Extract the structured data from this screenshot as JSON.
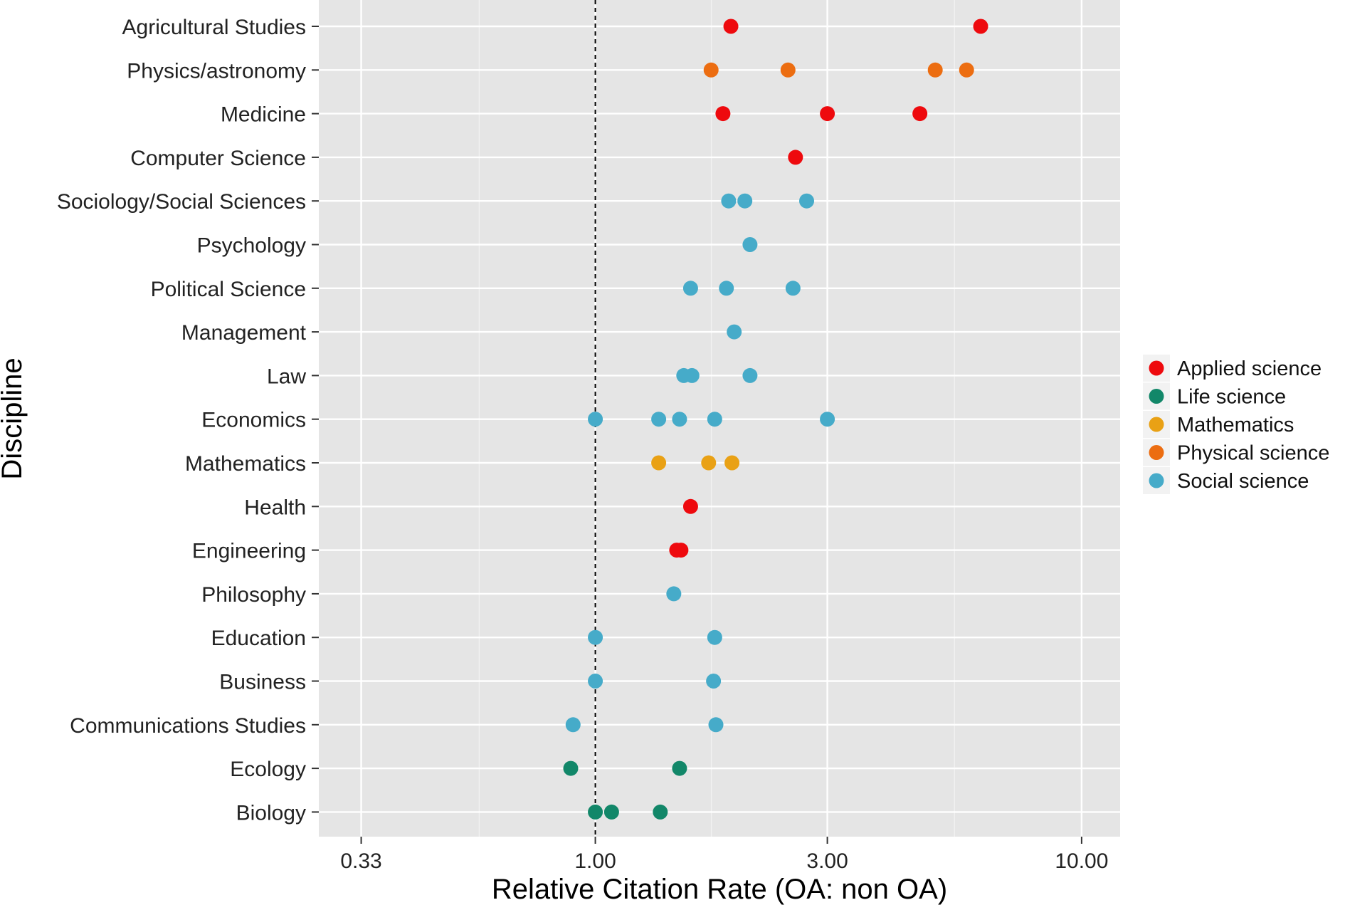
{
  "chart_data": {
    "type": "scatter",
    "title": "",
    "xlabel": "Relative Citation Rate (OA: non OA)",
    "ylabel": "Discipline",
    "x_scale": "log",
    "xlim": [
      0.27,
      12.0
    ],
    "x_ticks": [
      0.33,
      1.0,
      3.0,
      10.0
    ],
    "x_tick_labels": [
      "0.33",
      "1.00",
      "3.00",
      "10.00"
    ],
    "x_minor_ticks": [
      0.577,
      1.732,
      5.477
    ],
    "reference_line": {
      "x": 1.0,
      "style": "dashed"
    },
    "grid": true,
    "legend_position": "right",
    "categories": [
      "Agricultural Studies",
      "Physics/astronomy",
      "Medicine",
      "Computer Science",
      "Sociology/Social Sciences",
      "Psychology",
      "Political Science",
      "Management",
      "Law",
      "Economics",
      "Mathematics",
      "Health",
      "Engineering",
      "Philosophy",
      "Education",
      "Business",
      "Communications Studies",
      "Ecology",
      "Biology"
    ],
    "series": [
      {
        "name": "Applied science",
        "color": "#ee0a0e",
        "points": [
          {
            "category": "Agricultural Studies",
            "x": 1.9
          },
          {
            "category": "Agricultural Studies",
            "x": 6.2
          },
          {
            "category": "Medicine",
            "x": 1.83
          },
          {
            "category": "Medicine",
            "x": 3.0
          },
          {
            "category": "Medicine",
            "x": 4.65
          },
          {
            "category": "Computer Science",
            "x": 2.58
          },
          {
            "category": "Health",
            "x": 1.57
          },
          {
            "category": "Engineering",
            "x": 1.47
          },
          {
            "category": "Engineering",
            "x": 1.5
          }
        ]
      },
      {
        "name": "Life science",
        "color": "#128769",
        "points": [
          {
            "category": "Ecology",
            "x": 0.89
          },
          {
            "category": "Ecology",
            "x": 1.49
          },
          {
            "category": "Biology",
            "x": 1.0
          },
          {
            "category": "Biology",
            "x": 1.08
          },
          {
            "category": "Biology",
            "x": 1.36
          }
        ]
      },
      {
        "name": "Mathematics",
        "color": "#e9a115",
        "points": [
          {
            "category": "Mathematics",
            "x": 1.35
          },
          {
            "category": "Mathematics",
            "x": 1.71
          },
          {
            "category": "Mathematics",
            "x": 1.91
          }
        ]
      },
      {
        "name": "Physical science",
        "color": "#ec6d11",
        "points": [
          {
            "category": "Physics/astronomy",
            "x": 1.73
          },
          {
            "category": "Physics/astronomy",
            "x": 2.49
          },
          {
            "category": "Physics/astronomy",
            "x": 5.0
          },
          {
            "category": "Physics/astronomy",
            "x": 5.8
          }
        ]
      },
      {
        "name": "Social science",
        "color": "#46abc9",
        "points": [
          {
            "category": "Sociology/Social Sciences",
            "x": 1.88
          },
          {
            "category": "Sociology/Social Sciences",
            "x": 2.03
          },
          {
            "category": "Sociology/Social Sciences",
            "x": 2.72
          },
          {
            "category": "Psychology",
            "x": 2.08
          },
          {
            "category": "Political Science",
            "x": 1.57
          },
          {
            "category": "Political Science",
            "x": 1.86
          },
          {
            "category": "Political Science",
            "x": 2.55
          },
          {
            "category": "Management",
            "x": 1.93
          },
          {
            "category": "Law",
            "x": 1.52
          },
          {
            "category": "Law",
            "x": 1.58
          },
          {
            "category": "Law",
            "x": 2.08
          },
          {
            "category": "Economics",
            "x": 1.0
          },
          {
            "category": "Economics",
            "x": 1.35
          },
          {
            "category": "Economics",
            "x": 1.49
          },
          {
            "category": "Economics",
            "x": 1.76
          },
          {
            "category": "Economics",
            "x": 3.0
          },
          {
            "category": "Philosophy",
            "x": 1.45
          },
          {
            "category": "Education",
            "x": 1.0
          },
          {
            "category": "Education",
            "x": 1.76
          },
          {
            "category": "Business",
            "x": 1.0
          },
          {
            "category": "Business",
            "x": 1.75
          },
          {
            "category": "Communications Studies",
            "x": 0.9
          },
          {
            "category": "Communications Studies",
            "x": 1.77
          }
        ]
      }
    ]
  }
}
